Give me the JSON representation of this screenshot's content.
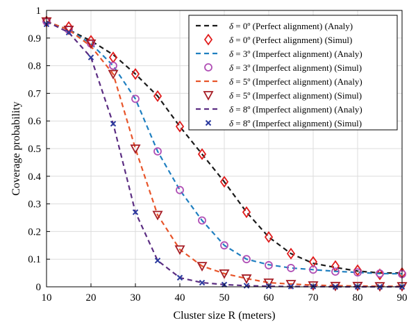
{
  "chart_data": {
    "type": "line",
    "xlabel": "Cluster size R (meters)",
    "ylabel": "Coverage probability",
    "xlim": [
      10,
      90
    ],
    "ylim": [
      0,
      1
    ],
    "xticks": [
      10,
      20,
      30,
      40,
      50,
      60,
      70,
      80,
      90
    ],
    "yticks": [
      0,
      0.1,
      0.2,
      0.3,
      0.4,
      0.5,
      0.6,
      0.7,
      0.8,
      0.9,
      1
    ],
    "ytick_labels": [
      "0",
      "0.1",
      "0.2",
      "0.3",
      "0.4",
      "0.5",
      "0.6",
      "0.7",
      "0.8",
      "0.9",
      "1"
    ],
    "grid": true,
    "legend_position": "top-right",
    "x": [
      10,
      15,
      20,
      25,
      30,
      35,
      40,
      45,
      50,
      55,
      60,
      65,
      70,
      75,
      80,
      85,
      90
    ],
    "series": [
      {
        "name": "δ = 0º (Perfect alignment) (Analy)",
        "symbol": "δ",
        "rest": " = 0º (Perfect alignment) (Analy)",
        "style": "dashed-line",
        "color": "#1a1a1a",
        "values": [
          0.96,
          0.93,
          0.89,
          0.84,
          0.77,
          0.69,
          0.58,
          0.48,
          0.38,
          0.27,
          0.18,
          0.12,
          0.085,
          0.07,
          0.057,
          0.05,
          0.05
        ]
      },
      {
        "name": "δ = 0º (Perfect alignment) (Simul)",
        "symbol": "δ",
        "rest": " = 0º (Perfect alignment) (Simul)",
        "style": "diamond",
        "color": "#e01b1b",
        "values": [
          0.96,
          0.94,
          0.89,
          0.83,
          0.77,
          0.69,
          0.58,
          0.48,
          0.38,
          0.27,
          0.18,
          0.12,
          0.09,
          0.075,
          0.06,
          0.045,
          0.05
        ]
      },
      {
        "name": "δ = 3º (Imperfect alignment) (Analy)",
        "symbol": "δ",
        "rest": " = 3º (Imperfect alignment) (Analy)",
        "style": "dashed-line",
        "color": "#1f7fc0",
        "values": [
          0.96,
          0.93,
          0.88,
          0.8,
          0.68,
          0.49,
          0.35,
          0.24,
          0.15,
          0.1,
          0.08,
          0.068,
          0.062,
          0.056,
          0.052,
          0.048,
          0.047
        ]
      },
      {
        "name": "δ = 3º (Imperfect alignment) (Simul)",
        "symbol": "δ",
        "rest": " = 3º (Imperfect alignment) (Simul)",
        "style": "circle",
        "color": "#b04fb5",
        "values": [
          0.96,
          0.93,
          0.88,
          0.8,
          0.68,
          0.49,
          0.35,
          0.24,
          0.15,
          0.1,
          0.078,
          0.068,
          0.062,
          0.055,
          0.052,
          0.048,
          0.046
        ]
      },
      {
        "name": "δ = 5º (Imperfect alignment) (Analy)",
        "symbol": "δ",
        "rest": " = 5º (Imperfect alignment) (Analy)",
        "style": "dashed-line",
        "color": "#e8552a",
        "values": [
          0.96,
          0.93,
          0.87,
          0.77,
          0.5,
          0.26,
          0.135,
          0.075,
          0.048,
          0.03,
          0.015,
          0.01,
          0.006,
          0.004,
          0.003,
          0.002,
          0.002
        ]
      },
      {
        "name": "δ = 5º (Imperfect alignment) (Simul)",
        "symbol": "δ",
        "rest": " = 5º (Imperfect alignment) (Simul)",
        "style": "triangle-down",
        "color": "#a61c24",
        "values": [
          0.96,
          0.93,
          0.88,
          0.77,
          0.5,
          0.26,
          0.135,
          0.075,
          0.048,
          0.03,
          0.015,
          0.01,
          0.005,
          0.003,
          0.003,
          0.002,
          0.002
        ]
      },
      {
        "name": "δ = 8º (Imperfect alignment) (Analy)",
        "symbol": "δ",
        "rest": " = 8º (Imperfect alignment) (Analy)",
        "style": "dashed-line",
        "color": "#5b2d82",
        "values": [
          0.96,
          0.92,
          0.83,
          0.59,
          0.27,
          0.095,
          0.033,
          0.015,
          0.008,
          0.004,
          0.002,
          0.001,
          0.001,
          0.0,
          0.0,
          0.0,
          0.0
        ]
      },
      {
        "name": "δ = 8º (Imperfect alignment) (Simul)",
        "symbol": "δ",
        "rest": " = 8º (Imperfect alignment) (Simul)",
        "style": "x",
        "color": "#2b3a9e",
        "values": [
          0.95,
          0.92,
          0.83,
          0.59,
          0.27,
          0.095,
          0.033,
          0.015,
          0.008,
          0.004,
          0.002,
          0.001,
          0.001,
          0.0,
          0.0,
          0.0,
          0.0
        ]
      }
    ]
  }
}
